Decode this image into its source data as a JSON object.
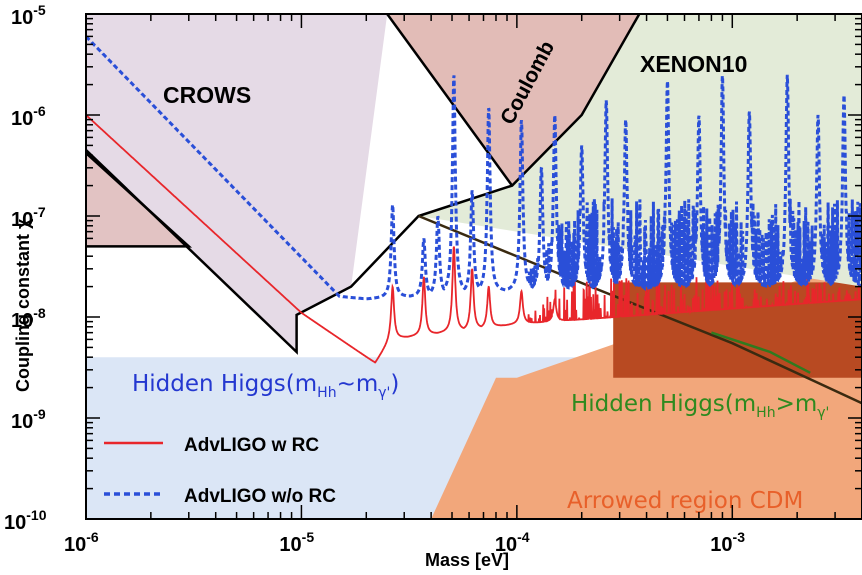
{
  "chart_data": {
    "type": "line",
    "title": "",
    "xlabel": "Mass [eV]",
    "ylabel": "Coupling constant χ",
    "x_scale": "log",
    "y_scale": "log",
    "xlim": [
      1e-06,
      0.004
    ],
    "ylim": [
      1e-10,
      1e-05
    ],
    "x_ticks": [
      {
        "value": 1e-06,
        "mant": "10",
        "exp": "-6"
      },
      {
        "value": 1e-05,
        "mant": "10",
        "exp": "-5"
      },
      {
        "value": 0.0001,
        "mant": "10",
        "exp": "-4"
      },
      {
        "value": 0.001,
        "mant": "10",
        "exp": "-3"
      }
    ],
    "y_ticks": [
      {
        "value": 1e-10,
        "mant": "10",
        "exp": "-10"
      },
      {
        "value": 1e-09,
        "mant": "10",
        "exp": "-9"
      },
      {
        "value": 1e-08,
        "mant": "10",
        "exp": "-8"
      },
      {
        "value": 1e-07,
        "mant": "10",
        "exp": "-7"
      },
      {
        "value": 1e-06,
        "mant": "10",
        "exp": "-6"
      },
      {
        "value": 1e-05,
        "mant": "10",
        "exp": "-5"
      }
    ],
    "grid": false,
    "legend_position": "bottom-left",
    "regions": [
      {
        "name": "Hidden Higgs(m_Hh~m_γ')",
        "color": "#dbe6f6",
        "polygon": [
          [
            1e-06,
            1e-10
          ],
          [
            1e-06,
            4e-09
          ],
          [
            0.004,
            4e-09
          ],
          [
            0.004,
            1e-10
          ]
        ]
      },
      {
        "name": "Arrowed region CDM",
        "color": "#f2a77b",
        "polygon": [
          [
            4e-05,
            1e-10
          ],
          [
            0.004,
            1e-10
          ],
          [
            0.004,
            3e-08
          ],
          [
            0.002,
            2.3e-08
          ],
          [
            0.0001,
            2.5e-09
          ],
          [
            8e-05,
            2.5e-09
          ]
        ]
      },
      {
        "name": "Hidden Higgs(m_Hh>m_γ')",
        "color": "#b84a22",
        "polygon": [
          [
            0.00028,
            2.5e-09
          ],
          [
            0.004,
            2.5e-09
          ],
          [
            0.004,
            2.2e-08
          ],
          [
            0.00028,
            2.2e-08
          ]
        ]
      },
      {
        "name": "CROWS",
        "color": "#e5dae6",
        "polygon": [
          [
            1e-06,
            1e-05
          ],
          [
            2.5e-05,
            1e-05
          ],
          [
            1.7e-05,
            2e-08
          ],
          [
            9.5e-06,
            1.05e-08
          ],
          [
            9.5e-06,
            4.5e-09
          ],
          [
            1e-06,
            4.5e-07
          ]
        ]
      },
      {
        "name": "CROWS lower patch",
        "color": "#e2c3c3",
        "polygon": [
          [
            1e-06,
            4.2e-07
          ],
          [
            3e-06,
            5e-08
          ],
          [
            1e-06,
            5e-08
          ]
        ]
      },
      {
        "name": "Coulomb",
        "color": "#e2bcb7",
        "polygon": [
          [
            2.5e-05,
            1e-05
          ],
          [
            9.5e-05,
            2e-07
          ],
          [
            0.0002,
            1e-06
          ],
          [
            0.00037,
            1e-05
          ]
        ]
      },
      {
        "name": "XENON10",
        "color": "#e3ebd8",
        "polygon": [
          [
            0.00037,
            1e-05
          ],
          [
            0.004,
            1e-05
          ],
          [
            0.004,
            2e-08
          ],
          [
            3.5e-05,
            1e-07
          ],
          [
            9.5e-05,
            2e-07
          ],
          [
            0.0002,
            1e-06
          ]
        ]
      }
    ],
    "boundary_curves": [
      {
        "name": "CROWS lower boundary",
        "color": "#000000",
        "points": [
          [
            1e-06,
            4.5e-07
          ],
          [
            9.5e-06,
            4.5e-09
          ],
          [
            9.5e-06,
            1.05e-08
          ],
          [
            1.7e-05,
            2e-08
          ],
          [
            3.5e-05,
            1e-07
          ],
          [
            9.5e-05,
            2e-07
          ],
          [
            0.0002,
            1e-06
          ],
          [
            0.00037,
            1e-05
          ]
        ]
      },
      {
        "name": "CROWS patch boundary",
        "color": "#000000",
        "points": [
          [
            1e-06,
            4.2e-07
          ],
          [
            3e-06,
            5e-08
          ],
          [
            1e-06,
            5e-08
          ]
        ]
      },
      {
        "name": "Coulomb left boundary",
        "color": "#000000",
        "points": [
          [
            2.5e-05,
            1e-05
          ],
          [
            9.5e-05,
            2e-07
          ]
        ]
      },
      {
        "name": "Dark diagonal",
        "color": "#3a2a10",
        "points": [
          [
            3.5e-05,
            1e-07
          ],
          [
            0.00022,
            2e-08
          ],
          [
            0.001,
            5.5e-09
          ],
          [
            0.004,
            1.4e-09
          ]
        ]
      },
      {
        "name": "Green diagonal",
        "color": "#2f7a1f",
        "points": [
          [
            0.0008,
            7e-09
          ],
          [
            0.0015,
            4.5e-09
          ],
          [
            0.0023,
            2.8e-09
          ]
        ]
      }
    ],
    "series": [
      {
        "name": "AdvLIGO w RC",
        "color": "#e8262b",
        "style": "solid",
        "baseline": [
          [
            1e-06,
            1e-06
          ],
          [
            1e-05,
            1.1e-08
          ],
          [
            2.2e-05,
            3.5e-09
          ],
          [
            2.6e-05,
            6e-09
          ],
          [
            0.0001,
            8.5e-09
          ],
          [
            0.004,
            1.5e-08
          ]
        ],
        "peaks": [
          [
            2.65e-05,
            2e-08
          ],
          [
            3.7e-05,
            2.5e-08
          ],
          [
            5.1e-05,
            5e-08
          ],
          [
            6.2e-05,
            3e-08
          ],
          [
            7.4e-05,
            2e-08
          ],
          [
            0.000105,
            1.8e-08
          ],
          [
            0.00015,
            1.5e-08
          ]
        ],
        "noise_start": 0.0001,
        "noise_band": [
          3e-09,
          2.5e-08
        ]
      },
      {
        "name": "AdvLIGO w/o RC",
        "color": "#2a4fd8",
        "style": "dashed",
        "baseline": [
          [
            1e-06,
            6e-06
          ],
          [
            1.5e-05,
            1.6e-08
          ],
          [
            2e-05,
            1.5e-08
          ],
          [
            0.0001,
            1.8e-08
          ],
          [
            0.004,
            2e-08
          ]
        ],
        "peaks": [
          [
            2.65e-05,
            1.3e-07
          ],
          [
            3.7e-05,
            6e-08
          ],
          [
            4.3e-05,
            1e-07
          ],
          [
            5.1e-05,
            2.5e-06
          ],
          [
            6.2e-05,
            1.8e-07
          ],
          [
            7.4e-05,
            1.2e-06
          ],
          [
            0.000105,
            9e-07
          ],
          [
            0.00013,
            3e-07
          ],
          [
            0.00015,
            1e-06
          ],
          [
            0.0002,
            5e-07
          ],
          [
            0.00026,
            1.4e-06
          ],
          [
            0.00032,
            9e-07
          ],
          [
            0.0005,
            2.2e-06
          ],
          [
            0.0007,
            1e-06
          ],
          [
            0.0009,
            2.5e-06
          ],
          [
            0.0012,
            1.1e-06
          ],
          [
            0.0018,
            2.5e-06
          ],
          [
            0.0025,
            1e-06
          ],
          [
            0.0033,
            1.6e-06
          ]
        ],
        "noise_start": 0.0001,
        "noise_band": [
          1.4e-08,
          1.5e-07
        ]
      }
    ],
    "labels": {
      "crows": "CROWS",
      "coulomb": "Coulomb",
      "xenon": "XENON10",
      "hh_eq_main": "Hidden Higgs(m",
      "hh_eq_sub1": "Hh",
      "hh_eq_mid": "~m",
      "hh_eq_sub2": "γ'",
      "hh_eq_end": ")",
      "hh_gt_main": "Hidden Higgs(m",
      "hh_gt_sub1": "Hh",
      "hh_gt_mid": ">m",
      "hh_gt_sub2": "γ'",
      "cdm": "Arrowed region CDM"
    },
    "legend": [
      {
        "label": "AdvLIGO w RC",
        "color": "#e8262b",
        "style": "solid"
      },
      {
        "label": "AdvLIGO w/o RC",
        "color": "#2a4fd8",
        "style": "dashed"
      }
    ],
    "colors": {
      "hh_eq_text": "#2438d0",
      "hh_gt_text": "#2f8a1f",
      "cdm_text": "#e8602a"
    }
  }
}
